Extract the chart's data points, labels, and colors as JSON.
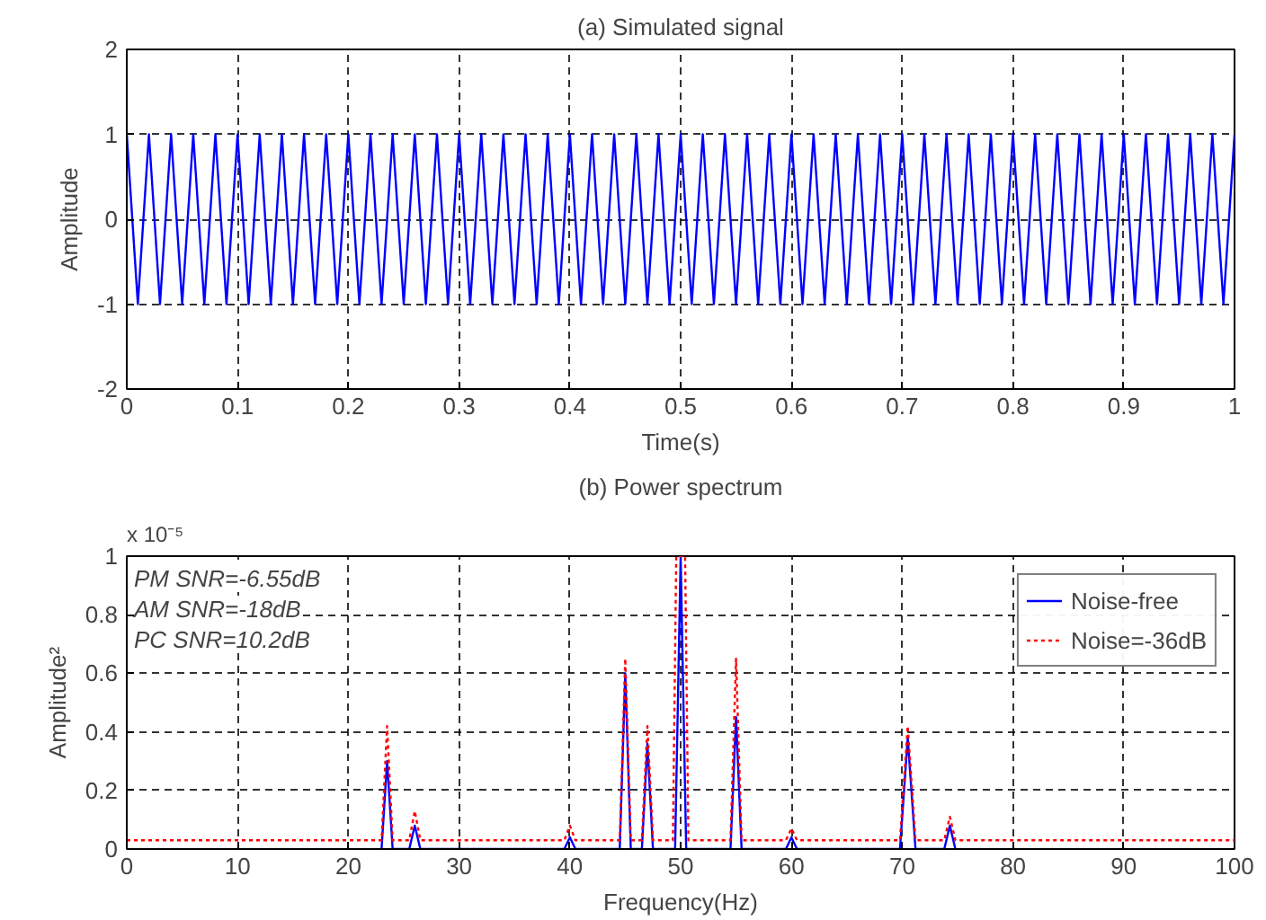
{
  "chart_data": [
    {
      "type": "line",
      "title": "(a) Simulated signal",
      "xlabel": "Time(s)",
      "ylabel": "Amplitude",
      "x": [
        0,
        0.01,
        0.02,
        0.03,
        0.04,
        0.05,
        0.06,
        0.07,
        0.08,
        0.09,
        0.1,
        0.11,
        0.12,
        0.13,
        0.14,
        0.15,
        0.16,
        0.17,
        0.18,
        0.19,
        0.2,
        0.21,
        0.22,
        0.23,
        0.24,
        0.25,
        0.26,
        0.27,
        0.28,
        0.29,
        0.3,
        0.31,
        0.32,
        0.33,
        0.34,
        0.35,
        0.36,
        0.37,
        0.38,
        0.39,
        0.4,
        0.41,
        0.42,
        0.43,
        0.44,
        0.45,
        0.46,
        0.47,
        0.48,
        0.49,
        0.5,
        0.51,
        0.52,
        0.53,
        0.54,
        0.55,
        0.56,
        0.57,
        0.58,
        0.59,
        0.6,
        0.61,
        0.62,
        0.63,
        0.64,
        0.65,
        0.66,
        0.67,
        0.68,
        0.69,
        0.7,
        0.71,
        0.72,
        0.73,
        0.74,
        0.75,
        0.76,
        0.77,
        0.78,
        0.79,
        0.8,
        0.81,
        0.82,
        0.83,
        0.84,
        0.85,
        0.86,
        0.87,
        0.88,
        0.89,
        0.9,
        0.91,
        0.92,
        0.93,
        0.94,
        0.95,
        0.96,
        0.97,
        0.98,
        0.99,
        1
      ],
      "series": [
        {
          "color": "#0000ff",
          "values": [
            1,
            -1,
            1,
            -1,
            1,
            -1,
            1,
            -1,
            1,
            -1,
            1,
            -1,
            1,
            -1,
            1,
            -1,
            1,
            -1,
            1,
            -1,
            1,
            -1,
            1,
            -1,
            1,
            -1,
            1,
            -1,
            1,
            -1,
            1,
            -1,
            1,
            -1,
            1,
            -1,
            1,
            -1,
            1,
            -1,
            1,
            -1,
            1,
            -1,
            1,
            -1,
            1,
            -1,
            1,
            -1,
            1,
            -1,
            1,
            -1,
            1,
            -1,
            1,
            -1,
            1,
            -1,
            1,
            -1,
            1,
            -1,
            1,
            -1,
            1,
            -1,
            1,
            -1,
            1,
            -1,
            1,
            -1,
            1,
            -1,
            1,
            -1,
            1,
            -1,
            1,
            -1,
            1,
            -1,
            1,
            -1,
            1,
            -1,
            1,
            -1,
            1,
            -1,
            1,
            -1,
            1,
            -1,
            1,
            -1,
            1,
            -1,
            1
          ]
        }
      ],
      "xlim": [
        0,
        1
      ],
      "xticks": [
        0,
        0.1,
        0.2,
        0.3,
        0.4,
        0.5,
        0.6,
        0.7,
        0.8,
        0.9,
        1
      ],
      "ylim": [
        -2,
        2
      ],
      "yticks": [
        -2,
        -1,
        0,
        1,
        2
      ],
      "grid": true,
      "line_style": "solid"
    },
    {
      "type": "line",
      "title": "(b) Power spectrum",
      "xlabel": "Frequency(Hz)",
      "ylabel": "Amplitude²",
      "annotations": [
        "x 10⁻⁵",
        "PM SNR=-6.55dB",
        "AM SNR=-18dB",
        "PC SNR=10.2dB"
      ],
      "series": [
        {
          "name": "Noise-free",
          "color": "#0000ff",
          "line_style": "solid",
          "x": [
            23,
            23.5,
            24,
            25.5,
            26,
            26.5,
            39.5,
            40,
            40.5,
            44.5,
            45,
            45.5,
            46.5,
            47,
            47.5,
            49.5,
            50,
            50.5,
            54.5,
            55,
            55.5,
            59.5,
            60,
            60.5,
            69.8,
            70.5,
            71.2,
            73.8,
            74.3,
            74.8
          ],
          "values": [
            0,
            0.3,
            0,
            0,
            0.08,
            0,
            0,
            0.04,
            0,
            0,
            0.6,
            0,
            0,
            0.36,
            0,
            0,
            1,
            0,
            0,
            0.45,
            0,
            0,
            0.04,
            0,
            0,
            0.38,
            0,
            0,
            0.08,
            0
          ]
        },
        {
          "name": "Noise=-36dB",
          "color": "#ff0000",
          "line_style": "dotted",
          "x": [
            0,
            23,
            23.5,
            24,
            25.5,
            26,
            26.5,
            39.5,
            40,
            40.5,
            44.5,
            45,
            45.5,
            46.5,
            47,
            47.5,
            49.3,
            49.6,
            50.4,
            50.7,
            54.5,
            55,
            55.5,
            59.5,
            60,
            60.5,
            69.8,
            70.5,
            71.2,
            73.8,
            74.3,
            74.8,
            100
          ],
          "values": [
            0.03,
            0.03,
            0.42,
            0.03,
            0.03,
            0.13,
            0.03,
            0.03,
            0.08,
            0.03,
            0.03,
            0.65,
            0.03,
            0.03,
            0.42,
            0.03,
            0.03,
            1,
            1,
            0.03,
            0.03,
            0.65,
            0.03,
            0.03,
            0.07,
            0.03,
            0.03,
            0.42,
            0.03,
            0.03,
            0.11,
            0.03,
            0.03
          ]
        }
      ],
      "xlim": [
        0,
        100
      ],
      "xticks": [
        0,
        10,
        20,
        30,
        40,
        50,
        60,
        70,
        80,
        90,
        100
      ],
      "ylim": [
        0,
        1
      ],
      "yticks": [
        0,
        0.2,
        0.4,
        0.6,
        0.8,
        1
      ],
      "grid": true,
      "legend": "top right"
    }
  ]
}
